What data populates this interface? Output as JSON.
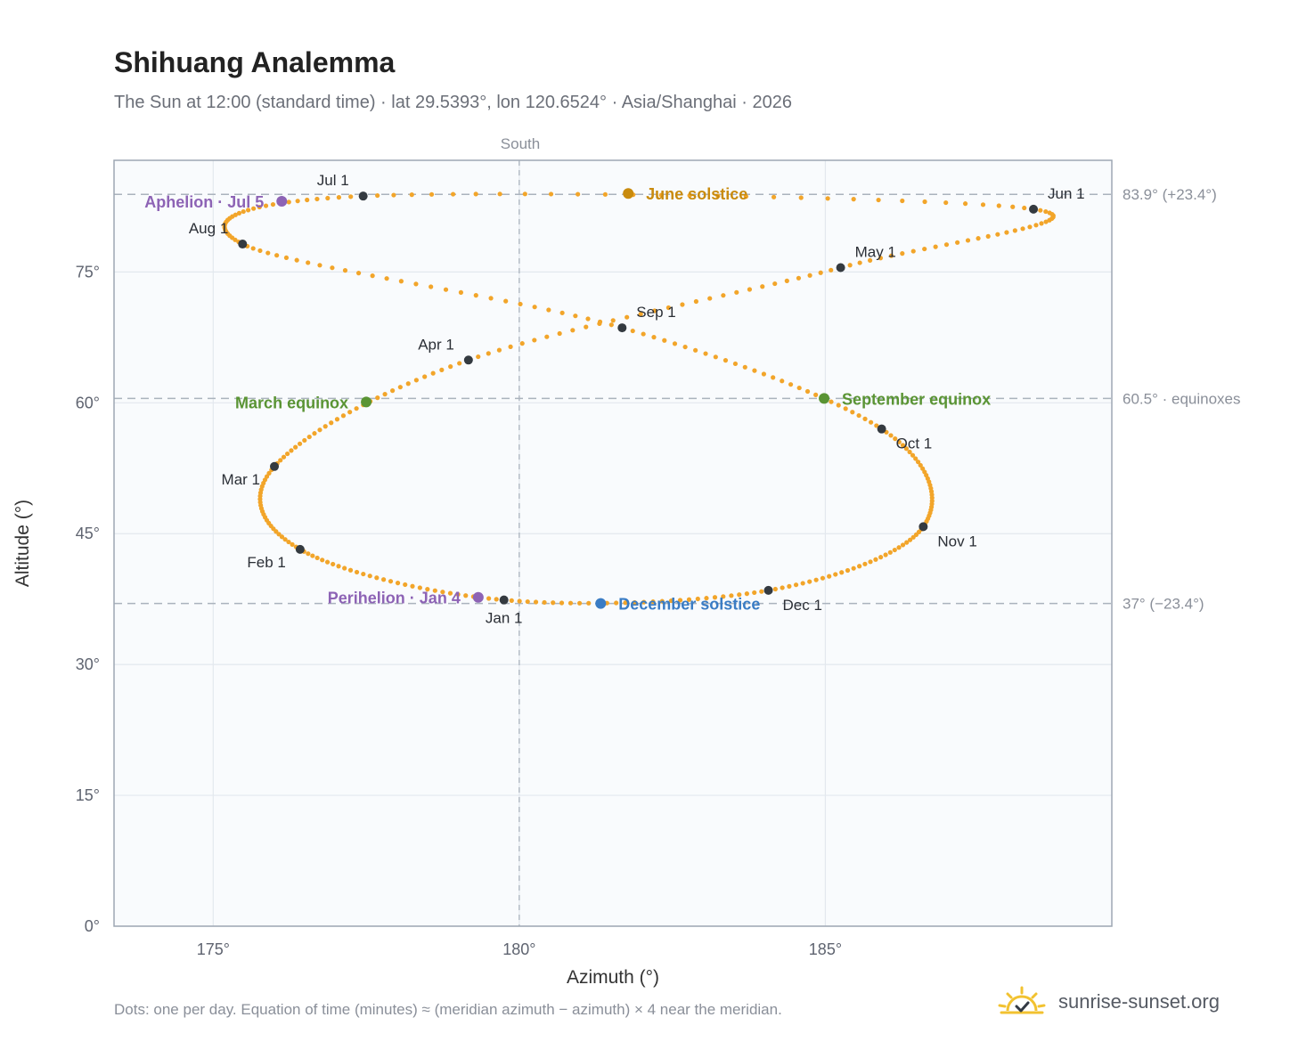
{
  "header": {
    "title": "Shihuang Analemma",
    "subtitle": "The Sun at 12:00 (standard time) · lat 29.5393°, lon 120.6524° · Asia/Shanghai · 2026"
  },
  "footer": {
    "note": "Dots: one per day. Equation of time (minutes) ≈ (meridian azimuth − azimuth) × 4 near the meridian.",
    "brand": "sunrise-sunset.org"
  },
  "chart_data": {
    "type": "scatter",
    "title": "Shihuang Analemma",
    "xlabel": "Azimuth (°)",
    "ylabel": "Altitude (°)",
    "xlim": [
      173.38,
      189.68
    ],
    "ylim": [
      0,
      87.8
    ],
    "xticks": [
      175,
      180,
      185
    ],
    "xtick_labels": [
      "175°",
      "180°",
      "185°"
    ],
    "yticks": [
      0,
      15,
      30,
      45,
      60,
      75
    ],
    "ytick_labels": [
      "0°",
      "15°",
      "30°",
      "45°",
      "60°",
      "75°"
    ],
    "grid": true,
    "colors": {
      "path": "#f2a52a",
      "month": "#343a40",
      "equinox": "#5a9434",
      "june": "#c98b0e",
      "december": "#3a7cc4",
      "apsis": "#8d63b5",
      "ref": "#aab3bd",
      "frame": "#9ea7b3",
      "plot_bg": "#f9fbfd"
    },
    "meridian": {
      "azimuth": 180,
      "label": "South"
    },
    "reference_lines": [
      {
        "altitude": 83.9,
        "label": "83.9° (+23.4°)"
      },
      {
        "altitude": 60.5,
        "label": "60.5° · equinoxes"
      },
      {
        "altitude": 37.0,
        "label": "37° (−23.4°)"
      }
    ],
    "months": [
      {
        "label": "Jan 1",
        "az": 179.75,
        "alt": 37.4,
        "pos": "below"
      },
      {
        "label": "Feb 1",
        "az": 176.42,
        "alt": 43.2,
        "pos": "below-left"
      },
      {
        "label": "Mar 1",
        "az": 176.0,
        "alt": 52.7,
        "pos": "below-left"
      },
      {
        "label": "Apr 1",
        "az": 179.17,
        "alt": 64.9,
        "pos": "above-left"
      },
      {
        "label": "May 1",
        "az": 185.25,
        "alt": 75.5,
        "pos": "above-right"
      },
      {
        "label": "Jun 1",
        "az": 188.4,
        "alt": 82.2,
        "pos": "above-right"
      },
      {
        "label": "Jul 1",
        "az": 177.45,
        "alt": 83.7,
        "pos": "above-left"
      },
      {
        "label": "Aug 1",
        "az": 175.48,
        "alt": 78.2,
        "pos": "above-left"
      },
      {
        "label": "Sep 1",
        "az": 181.68,
        "alt": 68.6,
        "pos": "above-right"
      },
      {
        "label": "Oct 1",
        "az": 185.92,
        "alt": 57.0,
        "pos": "below-right"
      },
      {
        "label": "Nov 1",
        "az": 186.6,
        "alt": 45.8,
        "pos": "below-right"
      },
      {
        "label": "Dec 1",
        "az": 184.07,
        "alt": 38.5,
        "pos": "below-right"
      }
    ],
    "events": [
      {
        "label": "June solstice",
        "az": 181.78,
        "alt": 84.0,
        "color": "#c98b0e",
        "pos": "right"
      },
      {
        "label": "March equinox",
        "az": 177.5,
        "alt": 60.1,
        "color": "#5a9434",
        "pos": "left"
      },
      {
        "label": "September equinox",
        "az": 184.98,
        "alt": 60.5,
        "color": "#5a9434",
        "pos": "right"
      },
      {
        "label": "December solstice",
        "az": 181.33,
        "alt": 37.0,
        "color": "#3a7cc4",
        "pos": "right"
      },
      {
        "label": "Aphelion · Jul 5",
        "az": 176.12,
        "alt": 83.1,
        "color": "#8d63b5",
        "pos": "left"
      },
      {
        "label": "Perihelion · Jan 4",
        "az": 179.33,
        "alt": 37.7,
        "color": "#8d63b5",
        "pos": "left"
      }
    ]
  }
}
